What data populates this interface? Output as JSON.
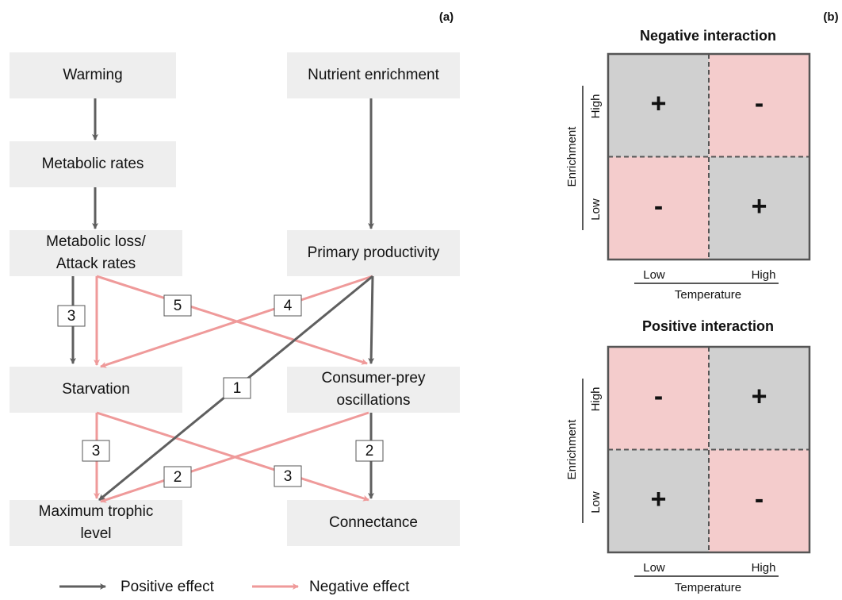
{
  "panel_a": {
    "label": "(a)",
    "nodes": [
      {
        "lines": [
          "Warming"
        ]
      },
      {
        "lines": [
          "Nutrient enrichment"
        ]
      },
      {
        "lines": [
          "Metabolic rates"
        ]
      },
      {
        "lines": [
          "Metabolic loss/",
          "Attack rates"
        ]
      },
      {
        "lines": [
          "Primary productivity"
        ]
      },
      {
        "lines": [
          "Starvation"
        ]
      },
      {
        "lines": [
          "Consumer-prey",
          "oscillations"
        ]
      },
      {
        "lines": [
          "Maximum trophic",
          "level"
        ]
      },
      {
        "lines": [
          "Connectance"
        ]
      }
    ],
    "edge_labels": [
      "3",
      "1",
      "2",
      "5",
      "4",
      "3",
      "3",
      "2"
    ],
    "legend": [
      "Positive effect",
      "Negative effect"
    ]
  },
  "panel_b": {
    "label": "(b)",
    "grids": [
      {
        "title": "Negative interaction",
        "cells": [
          "+",
          "-",
          "-",
          "+"
        ],
        "y_axis": "Enrichment",
        "y_ticks": [
          "High",
          "Low"
        ],
        "x_axis": "Temperature",
        "x_ticks": [
          "Low",
          "High"
        ]
      },
      {
        "title": "Positive interaction",
        "cells": [
          "-",
          "+",
          "+",
          "-"
        ],
        "y_axis": "Enrichment",
        "y_ticks": [
          "High",
          "Low"
        ],
        "x_axis": "Temperature",
        "x_ticks": [
          "Low",
          "High"
        ]
      }
    ]
  }
}
